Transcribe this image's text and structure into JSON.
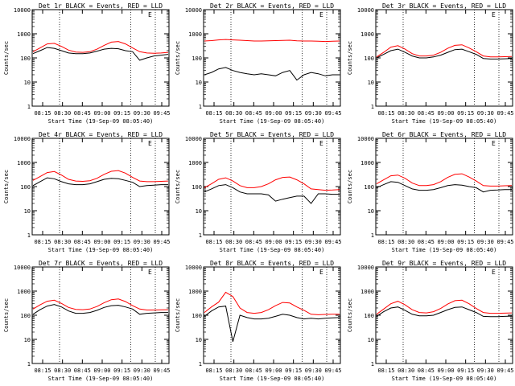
{
  "figure": {
    "xlabel": "Start Time (19-Sep-09 08:05:40)",
    "ylabel": "Counts/sec",
    "xticks": [
      "08:15",
      "08:30",
      "08:45",
      "09:00",
      "09:15",
      "09:30",
      "09:45"
    ],
    "yticks_top": [
      "10000",
      "1000",
      "100",
      "10",
      "1"
    ],
    "ytick_values": [
      10000,
      1000,
      100,
      10,
      1
    ],
    "series_colors": {
      "events": "#000000",
      "lld": "#ff0000"
    }
  },
  "chart_data": [
    {
      "type": "line",
      "title": "Det 1r BLACK = Events, RED = LLD",
      "ylim": [
        1,
        10000
      ],
      "log_y": true,
      "flag": "E",
      "series": [
        {
          "values": [
            150,
            200,
            270,
            250,
            200,
            160,
            150,
            150,
            160,
            190,
            230,
            250,
            240,
            200,
            180,
            80,
            100,
            120,
            130,
            140
          ]
        },
        {
          "values": [
            180,
            260,
            380,
            400,
            300,
            210,
            175,
            170,
            180,
            230,
            330,
            450,
            480,
            380,
            260,
            180,
            160,
            155,
            160,
            170
          ]
        }
      ]
    },
    {
      "type": "line",
      "title": "Det 2r BLACK = Events, RED = LLD",
      "ylim": [
        1,
        10000
      ],
      "log_y": true,
      "flag": "E",
      "series": [
        {
          "values": [
            20,
            25,
            35,
            40,
            30,
            25,
            22,
            20,
            22,
            20,
            18,
            25,
            30,
            12,
            20,
            25,
            22,
            18,
            20,
            20
          ]
        },
        {
          "values": [
            500,
            520,
            560,
            580,
            560,
            540,
            520,
            500,
            500,
            510,
            520,
            530,
            540,
            510,
            500,
            500,
            490,
            480,
            490,
            500
          ]
        }
      ]
    },
    {
      "type": "line",
      "title": "Det 3r BLACK = Events, RED = LLD",
      "ylim": [
        1,
        10000
      ],
      "log_y": true,
      "flag": "E",
      "series": [
        {
          "values": [
            100,
            140,
            200,
            230,
            170,
            120,
            100,
            100,
            110,
            130,
            170,
            220,
            230,
            180,
            140,
            95,
            90,
            90,
            92,
            95
          ]
        },
        {
          "values": [
            110,
            170,
            280,
            320,
            230,
            150,
            120,
            120,
            130,
            170,
            250,
            330,
            350,
            260,
            180,
            120,
            110,
            110,
            112,
            115
          ]
        }
      ]
    },
    {
      "type": "line",
      "title": "Det 4r BLACK = Events, RED = LLD",
      "ylim": [
        1,
        10000
      ],
      "log_y": true,
      "flag": "E",
      "series": [
        {
          "values": [
            110,
            160,
            230,
            210,
            160,
            130,
            120,
            120,
            130,
            160,
            200,
            220,
            210,
            180,
            150,
            100,
            110,
            115,
            120,
            120
          ]
        },
        {
          "values": [
            180,
            260,
            380,
            420,
            300,
            200,
            170,
            165,
            175,
            220,
            320,
            430,
            460,
            360,
            240,
            170,
            160,
            160,
            165,
            170
          ]
        }
      ]
    },
    {
      "type": "line",
      "title": "Det 5r BLACK = Events, RED = LLD",
      "ylim": [
        1,
        10000
      ],
      "log_y": true,
      "flag": "E",
      "series": [
        {
          "values": [
            60,
            80,
            110,
            120,
            90,
            60,
            50,
            50,
            50,
            45,
            25,
            30,
            35,
            40,
            40,
            20,
            50,
            50,
            48,
            48
          ]
        },
        {
          "values": [
            90,
            130,
            200,
            230,
            170,
            110,
            90,
            90,
            100,
            130,
            190,
            240,
            250,
            190,
            130,
            80,
            75,
            70,
            72,
            75
          ]
        }
      ]
    },
    {
      "type": "line",
      "title": "Det 6r BLACK = Events, RED = LLD",
      "ylim": [
        1,
        10000
      ],
      "log_y": true,
      "flag": "E",
      "series": [
        {
          "values": [
            90,
            120,
            160,
            150,
            110,
            80,
            70,
            70,
            75,
            90,
            110,
            120,
            115,
            100,
            90,
            60,
            70,
            72,
            75,
            75
          ]
        },
        {
          "values": [
            130,
            190,
            280,
            300,
            220,
            140,
            110,
            110,
            120,
            160,
            240,
            320,
            340,
            250,
            170,
            110,
            105,
            105,
            108,
            110
          ]
        }
      ]
    },
    {
      "type": "line",
      "title": "Det 7r BLACK = Events, RED = LLD",
      "ylim": [
        1,
        10000
      ],
      "log_y": true,
      "flag": "E",
      "series": [
        {
          "values": [
            110,
            170,
            240,
            280,
            220,
            150,
            120,
            120,
            130,
            160,
            210,
            250,
            260,
            220,
            180,
            110,
            120,
            125,
            130,
            130
          ]
        },
        {
          "values": [
            180,
            270,
            380,
            420,
            310,
            210,
            175,
            170,
            180,
            230,
            330,
            440,
            470,
            370,
            250,
            180,
            165,
            165,
            168,
            170
          ]
        }
      ]
    },
    {
      "type": "line",
      "title": "Det 8r BLACK = Events, RED = LLD",
      "ylim": [
        1,
        10000
      ],
      "log_y": true,
      "flag": "E",
      "series": [
        {
          "values": [
            90,
            150,
            220,
            240,
            8,
            100,
            80,
            70,
            70,
            75,
            90,
            110,
            100,
            80,
            70,
            75,
            70,
            75,
            78,
            80
          ]
        },
        {
          "values": [
            130,
            220,
            350,
            900,
            600,
            200,
            130,
            120,
            130,
            170,
            250,
            340,
            320,
            220,
            160,
            110,
            105,
            108,
            110,
            110
          ]
        }
      ]
    },
    {
      "type": "line",
      "title": "Det 9r BLACK = Events, RED = LLD",
      "ylim": [
        1,
        10000
      ],
      "log_y": true,
      "flag": "E",
      "series": [
        {
          "values": [
            90,
            140,
            200,
            220,
            160,
            110,
            95,
            95,
            100,
            130,
            170,
            210,
            220,
            170,
            130,
            90,
            88,
            88,
            90,
            92
          ]
        },
        {
          "values": [
            110,
            180,
            300,
            380,
            270,
            170,
            130,
            125,
            140,
            190,
            290,
            400,
            420,
            300,
            190,
            130,
            120,
            120,
            122,
            125
          ]
        }
      ]
    }
  ]
}
